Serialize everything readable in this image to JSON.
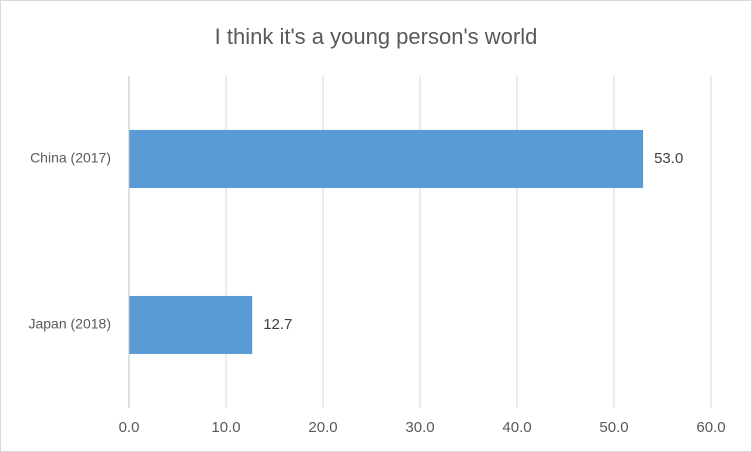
{
  "chart_data": {
    "type": "bar",
    "orientation": "horizontal",
    "title": "I think it's a young person's world",
    "categories": [
      "China (2017)",
      "Japan (2018)"
    ],
    "values": [
      53.0,
      12.7
    ],
    "value_labels": [
      "53.0",
      "12.7"
    ],
    "color": "#5b9bd5",
    "xlim": [
      0,
      60
    ],
    "xticks": [
      {
        "value": 0,
        "label": "0.0"
      },
      {
        "value": 10,
        "label": "10.0"
      },
      {
        "value": 20,
        "label": "20.0"
      },
      {
        "value": 30,
        "label": "30.0"
      },
      {
        "value": 40,
        "label": "40.0"
      },
      {
        "value": 50,
        "label": "50.0"
      },
      {
        "value": 60,
        "label": "60.0"
      }
    ],
    "grid": true
  }
}
